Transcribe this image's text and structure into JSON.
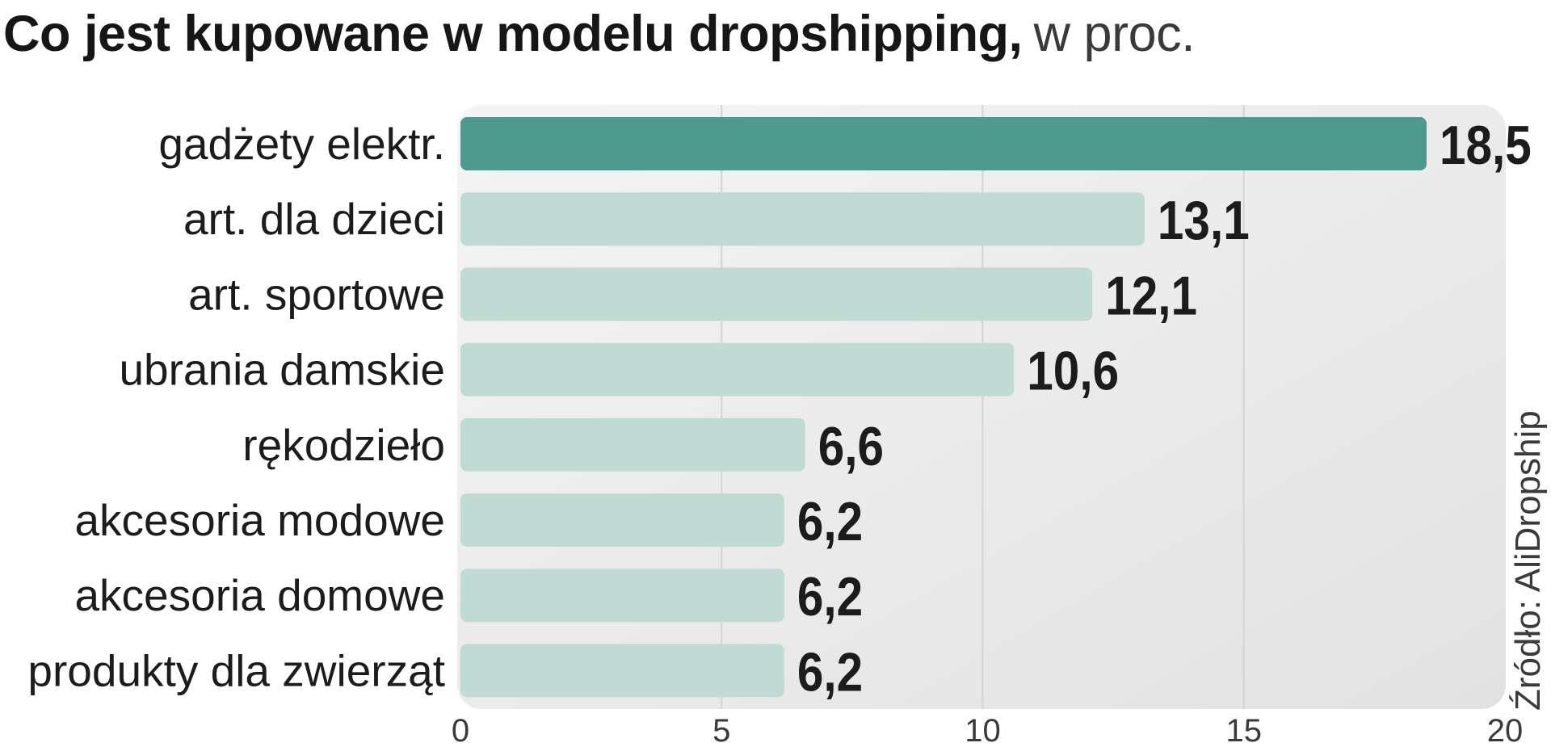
{
  "chart_data": {
    "type": "bar",
    "orientation": "horizontal",
    "title": {
      "main": "Co jest kupowane w modelu dropshipping,",
      "unit": "w proc."
    },
    "categories": [
      "gadżety elektr.",
      "art. dla dzieci",
      "art. sportowe",
      "ubrania damskie",
      "rękodzieło",
      "akcesoria modowe",
      "akcesoria domowe",
      "produkty dla zwierząt"
    ],
    "values": [
      18.5,
      13.1,
      12.1,
      10.6,
      6.6,
      6.2,
      6.2,
      6.2
    ],
    "value_labels": [
      "18,5",
      "13,1",
      "12,1",
      "10,6",
      "6,6",
      "6,2",
      "6,2",
      "6,2"
    ],
    "xlim": [
      0,
      20
    ],
    "xticks": [
      0,
      5,
      10,
      15,
      20
    ],
    "xtick_labels": [
      "0",
      "5",
      "10",
      "15",
      "20"
    ],
    "xlabel": "",
    "ylabel": "",
    "grid": true,
    "highlight_index": 0,
    "source": "Źródło: AliDropship"
  },
  "colors": {
    "highlight_bar": "#4f9a8f",
    "bar": "#c0dbd3",
    "plot_background_start": "#f4f4f4",
    "plot_background_end": "#e2e2e2",
    "gridline": "#d4d4d4"
  }
}
